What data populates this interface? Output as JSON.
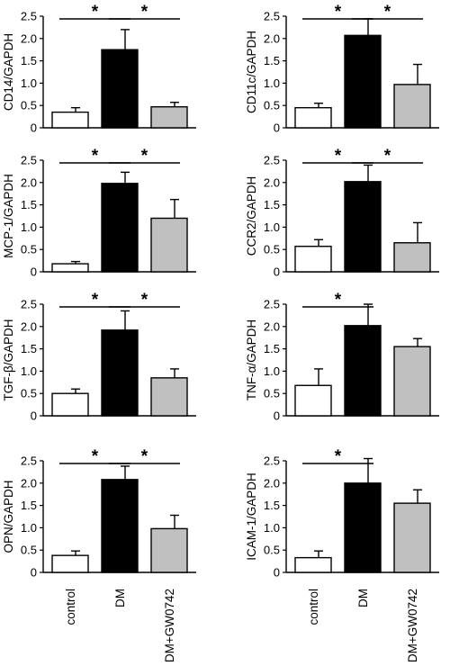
{
  "categories": [
    "control",
    "DM",
    "DM+GW0742"
  ],
  "bar_colors": [
    "#ffffff",
    "#000000",
    "#c0c0c0"
  ],
  "chart_data": [
    {
      "type": "bar",
      "ylabel": "CD14/GAPDH",
      "ylim": [
        0,
        2.5
      ],
      "yticks": [
        "0",
        "0.5",
        "1.0",
        "1.5",
        "2.0",
        "2.5"
      ],
      "values": [
        0.35,
        1.75,
        0.47
      ],
      "errors": [
        0.1,
        0.45,
        0.1
      ],
      "significance": [
        {
          "from": 0,
          "to": 1,
          "label": "*"
        },
        {
          "from": 1,
          "to": 2,
          "label": "*"
        }
      ]
    },
    {
      "type": "bar",
      "ylabel": "CD11c/GAPDH",
      "ylim": [
        0,
        2.5
      ],
      "yticks": [
        "0",
        "0.5",
        "1.0",
        "1.5",
        "2.0",
        "2.5"
      ],
      "values": [
        0.45,
        2.07,
        0.97
      ],
      "errors": [
        0.1,
        0.37,
        0.45
      ],
      "significance": [
        {
          "from": 0,
          "to": 1,
          "label": "*"
        },
        {
          "from": 1,
          "to": 2,
          "label": "*"
        }
      ]
    },
    {
      "type": "bar",
      "ylabel": "MCP-1/GAPDH",
      "ylim": [
        0,
        2.5
      ],
      "yticks": [
        "0",
        "0.5",
        "1.0",
        "1.5",
        "2.0",
        "2.5"
      ],
      "values": [
        0.18,
        1.98,
        1.2
      ],
      "errors": [
        0.05,
        0.25,
        0.42
      ],
      "significance": [
        {
          "from": 0,
          "to": 1,
          "label": "*"
        },
        {
          "from": 1,
          "to": 2,
          "label": "*"
        }
      ]
    },
    {
      "type": "bar",
      "ylabel": "CCR2/GAPDH",
      "ylim": [
        0,
        2.5
      ],
      "yticks": [
        "0",
        "0.5",
        "1.0",
        "1.5",
        "2.0",
        "2.5"
      ],
      "values": [
        0.57,
        2.02,
        0.65
      ],
      "errors": [
        0.15,
        0.37,
        0.45
      ],
      "significance": [
        {
          "from": 0,
          "to": 1,
          "label": "*"
        },
        {
          "from": 1,
          "to": 2,
          "label": "*"
        }
      ]
    },
    {
      "type": "bar",
      "ylabel": "TGF-β/GAPDH",
      "ylim": [
        0,
        2.5
      ],
      "yticks": [
        "0",
        "0.5",
        "1.0",
        "1.5",
        "2.0",
        "2.5"
      ],
      "values": [
        0.5,
        1.92,
        0.85
      ],
      "errors": [
        0.1,
        0.43,
        0.2
      ],
      "significance": [
        {
          "from": 0,
          "to": 1,
          "label": "*"
        },
        {
          "from": 1,
          "to": 2,
          "label": "*"
        }
      ]
    },
    {
      "type": "bar",
      "ylabel": "TNF-α/GAPDH",
      "ylim": [
        0,
        2.5
      ],
      "yticks": [
        "0",
        "0.5",
        "1.0",
        "1.5",
        "2.0",
        "2.5"
      ],
      "values": [
        0.68,
        2.02,
        1.55
      ],
      "errors": [
        0.37,
        0.48,
        0.18
      ],
      "significance": [
        {
          "from": 0,
          "to": 1,
          "label": "*"
        }
      ]
    },
    {
      "type": "bar",
      "ylabel": "OPN/GAPDH",
      "ylim": [
        0,
        2.5
      ],
      "yticks": [
        "0",
        "0.5",
        "1.0",
        "1.5",
        "2.0",
        "2.5"
      ],
      "values": [
        0.38,
        2.08,
        0.98
      ],
      "errors": [
        0.1,
        0.3,
        0.3
      ],
      "significance": [
        {
          "from": 0,
          "to": 1,
          "label": "*"
        },
        {
          "from": 1,
          "to": 2,
          "label": "*"
        }
      ]
    },
    {
      "type": "bar",
      "ylabel": "ICAM-1/GAPDH",
      "ylim": [
        0,
        2.5
      ],
      "yticks": [
        "0",
        "0.5",
        "1.0",
        "1.5",
        "2.0",
        "2.5"
      ],
      "values": [
        0.33,
        2.0,
        1.55
      ],
      "errors": [
        0.15,
        0.55,
        0.3
      ],
      "significance": [
        {
          "from": 0,
          "to": 1,
          "label": "*"
        }
      ]
    }
  ]
}
